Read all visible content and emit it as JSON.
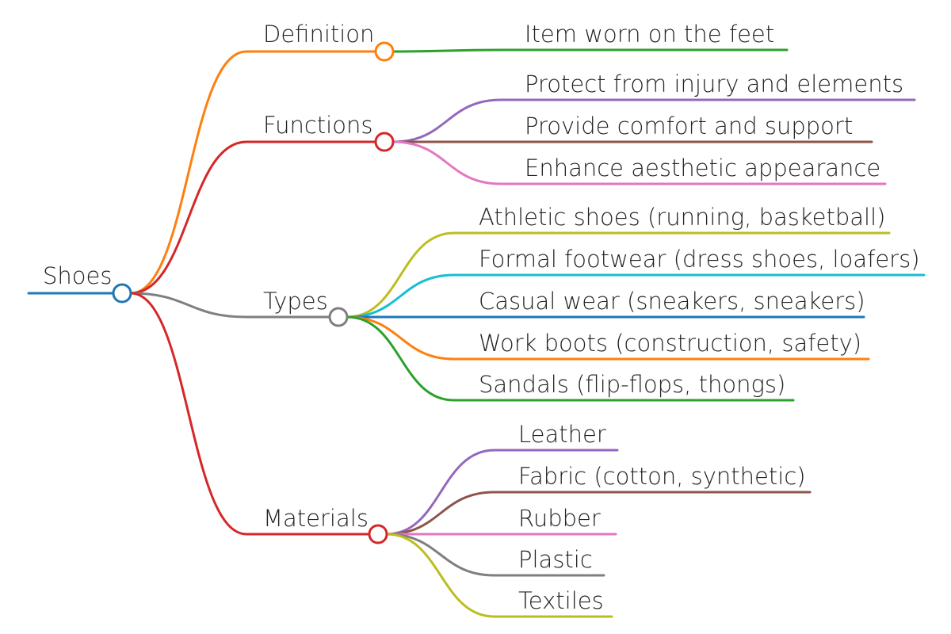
{
  "root": {
    "label": "Shoes",
    "color": "#1f77b4"
  },
  "branches": [
    {
      "label": "Definition",
      "color": "#ff7f0e",
      "children": [
        {
          "label": "Item worn on the feet",
          "color": "#2ca02c"
        }
      ]
    },
    {
      "label": "Functions",
      "color": "#d62728",
      "children": [
        {
          "label": "Protect from injury and elements",
          "color": "#9467bd"
        },
        {
          "label": "Provide comfort and support",
          "color": "#8c564b"
        },
        {
          "label": "Enhance aesthetic appearance",
          "color": "#e377c2"
        }
      ]
    },
    {
      "label": "Types",
      "color": "#7f7f7f",
      "children": [
        {
          "label": "Athletic shoes (running, basketball)",
          "color": "#bcbd22"
        },
        {
          "label": "Formal footwear (dress shoes, loafers)",
          "color": "#17becf"
        },
        {
          "label": "Casual wear (sneakers, sneakers)",
          "color": "#1f77b4"
        },
        {
          "label": "Work boots (construction, safety)",
          "color": "#ff7f0e"
        },
        {
          "label": "Sandals (flip-flops, thongs)",
          "color": "#2ca02c"
        }
      ]
    },
    {
      "label": "Materials",
      "color": "#d62728",
      "children": [
        {
          "label": "Leather",
          "color": "#9467bd"
        },
        {
          "label": "Fabric (cotton, synthetic)",
          "color": "#8c564b"
        },
        {
          "label": "Rubber",
          "color": "#e377c2"
        },
        {
          "label": "Plastic",
          "color": "#7f7f7f"
        },
        {
          "label": "Textiles",
          "color": "#bcbd22"
        }
      ]
    }
  ]
}
